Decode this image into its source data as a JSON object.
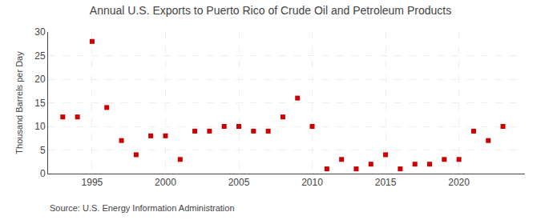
{
  "chart_data": {
    "type": "scatter",
    "title": "Annual U.S. Exports to Puerto Rico of Crude Oil and Petroleum Products",
    "ylabel": "Thousand Barrels per Day",
    "annotations": [
      "Source: U.S. Energy Information Administration"
    ],
    "x": [
      1993,
      1994,
      1995,
      1996,
      1997,
      1998,
      1999,
      2000,
      2001,
      2002,
      2003,
      2004,
      2005,
      2006,
      2007,
      2008,
      2009,
      2010,
      2011,
      2012,
      2013,
      2014,
      2015,
      2016,
      2017,
      2018,
      2019,
      2020,
      2021,
      2022,
      2023
    ],
    "values": [
      12,
      12,
      28,
      14,
      7,
      4,
      8,
      8,
      3,
      9,
      9,
      10,
      10,
      9,
      9,
      12,
      16,
      10,
      1,
      3,
      1,
      2,
      4,
      1,
      2,
      2,
      3,
      3,
      9,
      7,
      10
    ],
    "color": "#cc0000",
    "marker": "square",
    "xlim": [
      1992,
      2024.5
    ],
    "xticks": [
      1995,
      2000,
      2005,
      2010,
      2015,
      2020
    ],
    "ylim": [
      0,
      30
    ],
    "yticks": [
      0,
      5,
      10,
      15,
      20,
      25,
      30
    ],
    "grid": true
  }
}
